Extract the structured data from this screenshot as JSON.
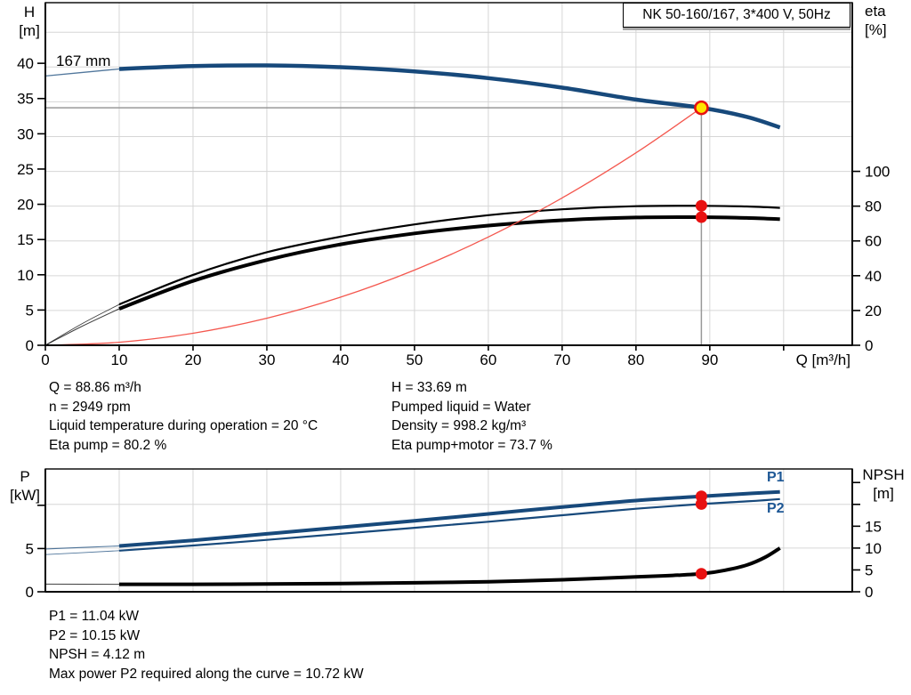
{
  "title_box": "NK 50-160/167, 3*400 V, 50Hz",
  "labels": {
    "h_axis": [
      "H",
      "[m]"
    ],
    "eta_axis": [
      "eta",
      "[%]"
    ],
    "p_axis": [
      "P",
      "[kW]"
    ],
    "npsh_axis": [
      "NPSH",
      "[m]"
    ],
    "impeller": "167 mm",
    "p1": "P1",
    "p2": "P2"
  },
  "info_top_left": [
    "Q = 88.86 m³/h",
    "n = 2949 rpm",
    "Liquid temperature during operation = 20 °C",
    "Eta pump = 80.2 %"
  ],
  "info_top_right": [
    "H = 33.69 m",
    "Pumped liquid = Water",
    "Density = 998.2 kg/m³",
    "Eta pump+motor = 73.7 %"
  ],
  "info_bottom": [
    "P1 = 11.04 kW",
    "P2 = 10.15 kW",
    "NPSH = 4.12 m",
    "Max power P2 required along the curve = 10.72 kW"
  ],
  "colors": {
    "curve_blue": "#17497b",
    "label_blue": "#1d5795",
    "system_red": "#f4574e",
    "red_dot": "#e81111",
    "duty_yellow": "#ffe400",
    "grid": "#d6d6d6",
    "duty_line": "#999999",
    "axis": "#000000",
    "black": "#000000"
  },
  "chart_data": [
    {
      "type": "line",
      "x_axis": {
        "label": "Q [m³/h]",
        "min": 0,
        "max": 109.3,
        "ticks": [
          0,
          10,
          20,
          30,
          40,
          50,
          60,
          70,
          80,
          90
        ],
        "unlabeled_ticks": [
          100
        ],
        "grid_values": [
          10,
          20,
          30,
          40,
          50,
          60,
          70,
          80,
          90,
          100
        ]
      },
      "y_left": {
        "label": "H [m]",
        "min": 0,
        "max": 48.6,
        "ticks": [
          0,
          5,
          10,
          15,
          20,
          25,
          30,
          35,
          40
        ],
        "unlabeled_ticks": []
      },
      "y_right": {
        "label": "eta [%]",
        "min": 0,
        "max": 197,
        "ticks": [
          0,
          20,
          40,
          60,
          80,
          100
        ],
        "unlabeled_ticks": []
      },
      "grid_y": {
        "axis": "right",
        "values": [
          20,
          40,
          60,
          80,
          100,
          120,
          140,
          160,
          180
        ]
      },
      "crosshair": {
        "q": 88.86,
        "v": 33.69,
        "axis": "left"
      },
      "series": [
        {
          "name": "pump-curve-167mm",
          "axis": "left",
          "color_key": "curve_blue",
          "width": 4.5,
          "thin_width": 1.3,
          "thin_until": 10,
          "points": [
            [
              0,
              38.2
            ],
            [
              10,
              39.2
            ],
            [
              20,
              39.6
            ],
            [
              30,
              39.7
            ],
            [
              40,
              39.45
            ],
            [
              50,
              38.85
            ],
            [
              60,
              37.9
            ],
            [
              70,
              36.55
            ],
            [
              80,
              34.85
            ],
            [
              88.86,
              33.69
            ],
            [
              95,
              32.4
            ],
            [
              99.5,
              30.9
            ]
          ]
        },
        {
          "name": "eta-pump-curve",
          "axis": "right",
          "color_key": "black",
          "width": 2.2,
          "thin_width": 0.9,
          "thin_until": 10,
          "points": [
            [
              0,
              0
            ],
            [
              5,
              12.5
            ],
            [
              10,
              23.5
            ],
            [
              20,
              40.5
            ],
            [
              30,
              53.5
            ],
            [
              40,
              62.5
            ],
            [
              50,
              69.5
            ],
            [
              60,
              74.8
            ],
            [
              70,
              78.2
            ],
            [
              80,
              80
            ],
            [
              88.86,
              80.2
            ],
            [
              95,
              79.8
            ],
            [
              99.5,
              79
            ]
          ]
        },
        {
          "name": "eta-pump-motor-curve",
          "axis": "right",
          "color_key": "black",
          "width": 4,
          "thin_width": 1,
          "thin_until": 10,
          "points": [
            [
              0,
              0
            ],
            [
              5,
              11
            ],
            [
              10,
              21
            ],
            [
              20,
              37
            ],
            [
              30,
              49
            ],
            [
              40,
              58
            ],
            [
              50,
              64.3
            ],
            [
              60,
              68.8
            ],
            [
              70,
              71.9
            ],
            [
              80,
              73.5
            ],
            [
              88.86,
              73.7
            ],
            [
              95,
              73.2
            ],
            [
              99.5,
              72.5
            ]
          ]
        },
        {
          "name": "system-curve",
          "axis": "left",
          "color_key": "system_red",
          "width": 1.3,
          "thin_width": 1.3,
          "thin_until": 0,
          "points": [
            [
              0,
              0
            ],
            [
              10,
              0.43
            ],
            [
              20,
              1.71
            ],
            [
              30,
              3.84
            ],
            [
              40,
              6.83
            ],
            [
              50,
              10.67
            ],
            [
              60,
              15.36
            ],
            [
              70,
              20.9
            ],
            [
              80,
              27.3
            ],
            [
              88.86,
              33.69
            ]
          ]
        }
      ],
      "markers": [
        {
          "name": "eta-pump-point",
          "q": 88.86,
          "v": 80.2,
          "axis": "right",
          "r": 6.5,
          "fill_key": "red_dot",
          "interactable": false
        },
        {
          "name": "eta-pump-motor-point",
          "q": 88.86,
          "v": 73.7,
          "axis": "right",
          "r": 6.5,
          "fill_key": "red_dot",
          "interactable": false
        },
        {
          "name": "duty-point",
          "q": 88.86,
          "v": 33.69,
          "axis": "left",
          "r": 7,
          "fill_key": "duty_yellow",
          "stroke_key": "red_dot",
          "stroke_width": 2.6,
          "interactable": true
        }
      ]
    },
    {
      "type": "line",
      "x_axis": {
        "label": "",
        "min": 0,
        "max": 109.3,
        "ticks": [],
        "unlabeled_ticks": [],
        "grid_values": [
          10,
          20,
          30,
          40,
          50,
          60,
          70,
          80,
          90,
          100
        ]
      },
      "y_left": {
        "label": "P [kW]",
        "min": 0,
        "max": 14.2,
        "ticks": [
          0,
          5
        ],
        "unlabeled_ticks": [
          10
        ]
      },
      "y_right": {
        "label": "NPSH [m]",
        "min": 0,
        "max": 28.1,
        "ticks": [
          0,
          5,
          10,
          15
        ],
        "unlabeled_ticks": [
          20,
          25
        ]
      },
      "grid_y": {
        "axis": "right",
        "values": [
          10,
          20
        ]
      },
      "crosshair": null,
      "series": [
        {
          "name": "p1-curve",
          "axis": "left",
          "color_key": "curve_blue",
          "width": 4,
          "thin_width": 1.1,
          "thin_until": 10,
          "points": [
            [
              0,
              4.95
            ],
            [
              10,
              5.3
            ],
            [
              20,
              5.95
            ],
            [
              30,
              6.7
            ],
            [
              40,
              7.45
            ],
            [
              50,
              8.2
            ],
            [
              60,
              9.0
            ],
            [
              70,
              9.8
            ],
            [
              80,
              10.55
            ],
            [
              88.86,
              11.04
            ],
            [
              95,
              11.35
            ],
            [
              99.5,
              11.55
            ]
          ]
        },
        {
          "name": "p2-curve",
          "axis": "left",
          "color_key": "curve_blue",
          "width": 2.2,
          "thin_width": 0.9,
          "thin_until": 10,
          "points": [
            [
              0,
              4.3
            ],
            [
              10,
              4.75
            ],
            [
              20,
              5.35
            ],
            [
              30,
              6.0
            ],
            [
              40,
              6.7
            ],
            [
              50,
              7.4
            ],
            [
              60,
              8.1
            ],
            [
              70,
              8.85
            ],
            [
              80,
              9.6
            ],
            [
              88.86,
              10.15
            ],
            [
              95,
              10.45
            ],
            [
              99.5,
              10.72
            ]
          ]
        },
        {
          "name": "npsh-curve",
          "axis": "right",
          "color_key": "black",
          "width": 4,
          "thin_width": 1,
          "thin_until": 10,
          "points": [
            [
              0,
              1.75
            ],
            [
              10,
              1.72
            ],
            [
              20,
              1.72
            ],
            [
              30,
              1.78
            ],
            [
              40,
              1.9
            ],
            [
              50,
              2.05
            ],
            [
              60,
              2.3
            ],
            [
              70,
              2.75
            ],
            [
              80,
              3.4
            ],
            [
              85,
              3.75
            ],
            [
              88.86,
              4.12
            ],
            [
              92,
              4.9
            ],
            [
              95,
              6.1
            ],
            [
              97.5,
              7.9
            ],
            [
              99.5,
              10.0
            ]
          ]
        }
      ],
      "markers": [
        {
          "name": "p1-point",
          "q": 88.86,
          "v": 11.04,
          "axis": "left",
          "r": 6.5,
          "fill_key": "red_dot",
          "interactable": false
        },
        {
          "name": "p2-point",
          "q": 88.86,
          "v": 10.15,
          "axis": "left",
          "r": 6.5,
          "fill_key": "red_dot",
          "interactable": false
        },
        {
          "name": "npsh-point",
          "q": 88.86,
          "v": 4.12,
          "axis": "right",
          "r": 6.5,
          "fill_key": "red_dot",
          "interactable": false
        }
      ]
    }
  ]
}
